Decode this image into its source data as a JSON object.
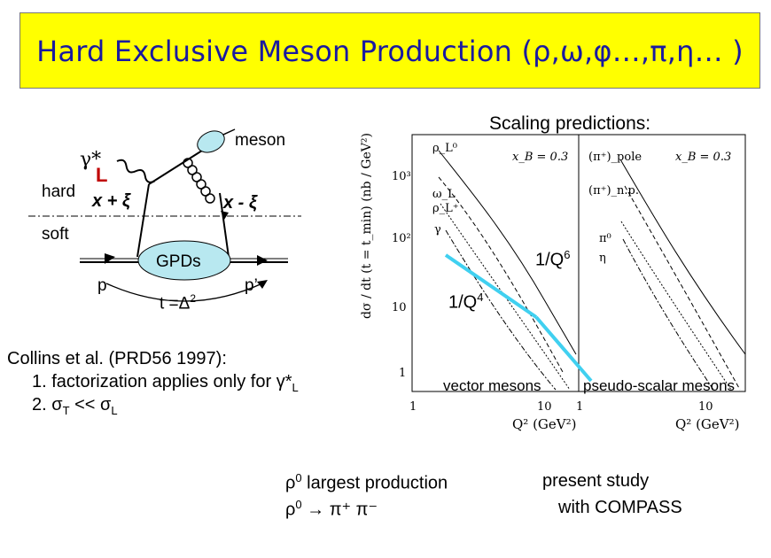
{
  "title": "Hard Exclusive Meson Production (ρ,ω,φ…,π,η… )",
  "diagram": {
    "meson": "meson",
    "gamma": "γ*",
    "L": "L",
    "hard": "hard",
    "x_plus": "x + ξ",
    "x_minus": "x - ξ",
    "soft": "soft",
    "gpds": "GPDs",
    "p": "p",
    "p_prime": "p’",
    "t_label": "t =Δ",
    "t_sup": "2"
  },
  "scaling_title": "Scaling predictions:",
  "plot": {
    "ylabel": "dσ / dt (t = t_min) (nb / GeV²)",
    "yticks": [
      "10³",
      "10²",
      "10",
      "1"
    ],
    "xticks_left": [
      "1",
      "10"
    ],
    "xticks_right": [
      "1",
      "10"
    ],
    "xlabel_left": "Q² (GeV²)",
    "xlabel_right": "Q² (GeV²)",
    "xb_left": "x_B = 0.3",
    "xb_right": "x_B = 0.3",
    "legend_left": [
      "ρ_L⁰",
      "ω_L",
      "ρ_L⁺",
      "γ"
    ],
    "legend_right": [
      "(π⁺)_pole",
      "(π⁺)_n.p.",
      "π⁰",
      "η"
    ],
    "annot_q6": "1/Q",
    "annot_q6_sup": "6",
    "annot_q4": "1/Q",
    "annot_q4_sup": "4",
    "vector": "vector mesons",
    "pseudo": "pseudo-scalar mesons"
  },
  "collins": {
    "line1": "Collins et al. (PRD56 1997):",
    "line2": "1. factorization applies only for γ*",
    "line2_sub": "L",
    "line3_a": "2. σ",
    "line3_sub1": "T",
    "line3_b": " << σ",
    "line3_sub2": "L"
  },
  "bottom": {
    "rho_line1_a": "ρ",
    "rho_line1_sup": "0",
    "rho_line1_b": " largest production",
    "rho_line2_a": "ρ",
    "rho_line2_sup": "0",
    "rho_line2_b": " → π⁺ π⁻",
    "present1": "present study",
    "present2": "with COMPASS"
  },
  "colors": {
    "title_bg": "#ffff00",
    "title_text": "#1a1aa0",
    "annot_line": "#40d0f0",
    "L": "#c00000"
  }
}
